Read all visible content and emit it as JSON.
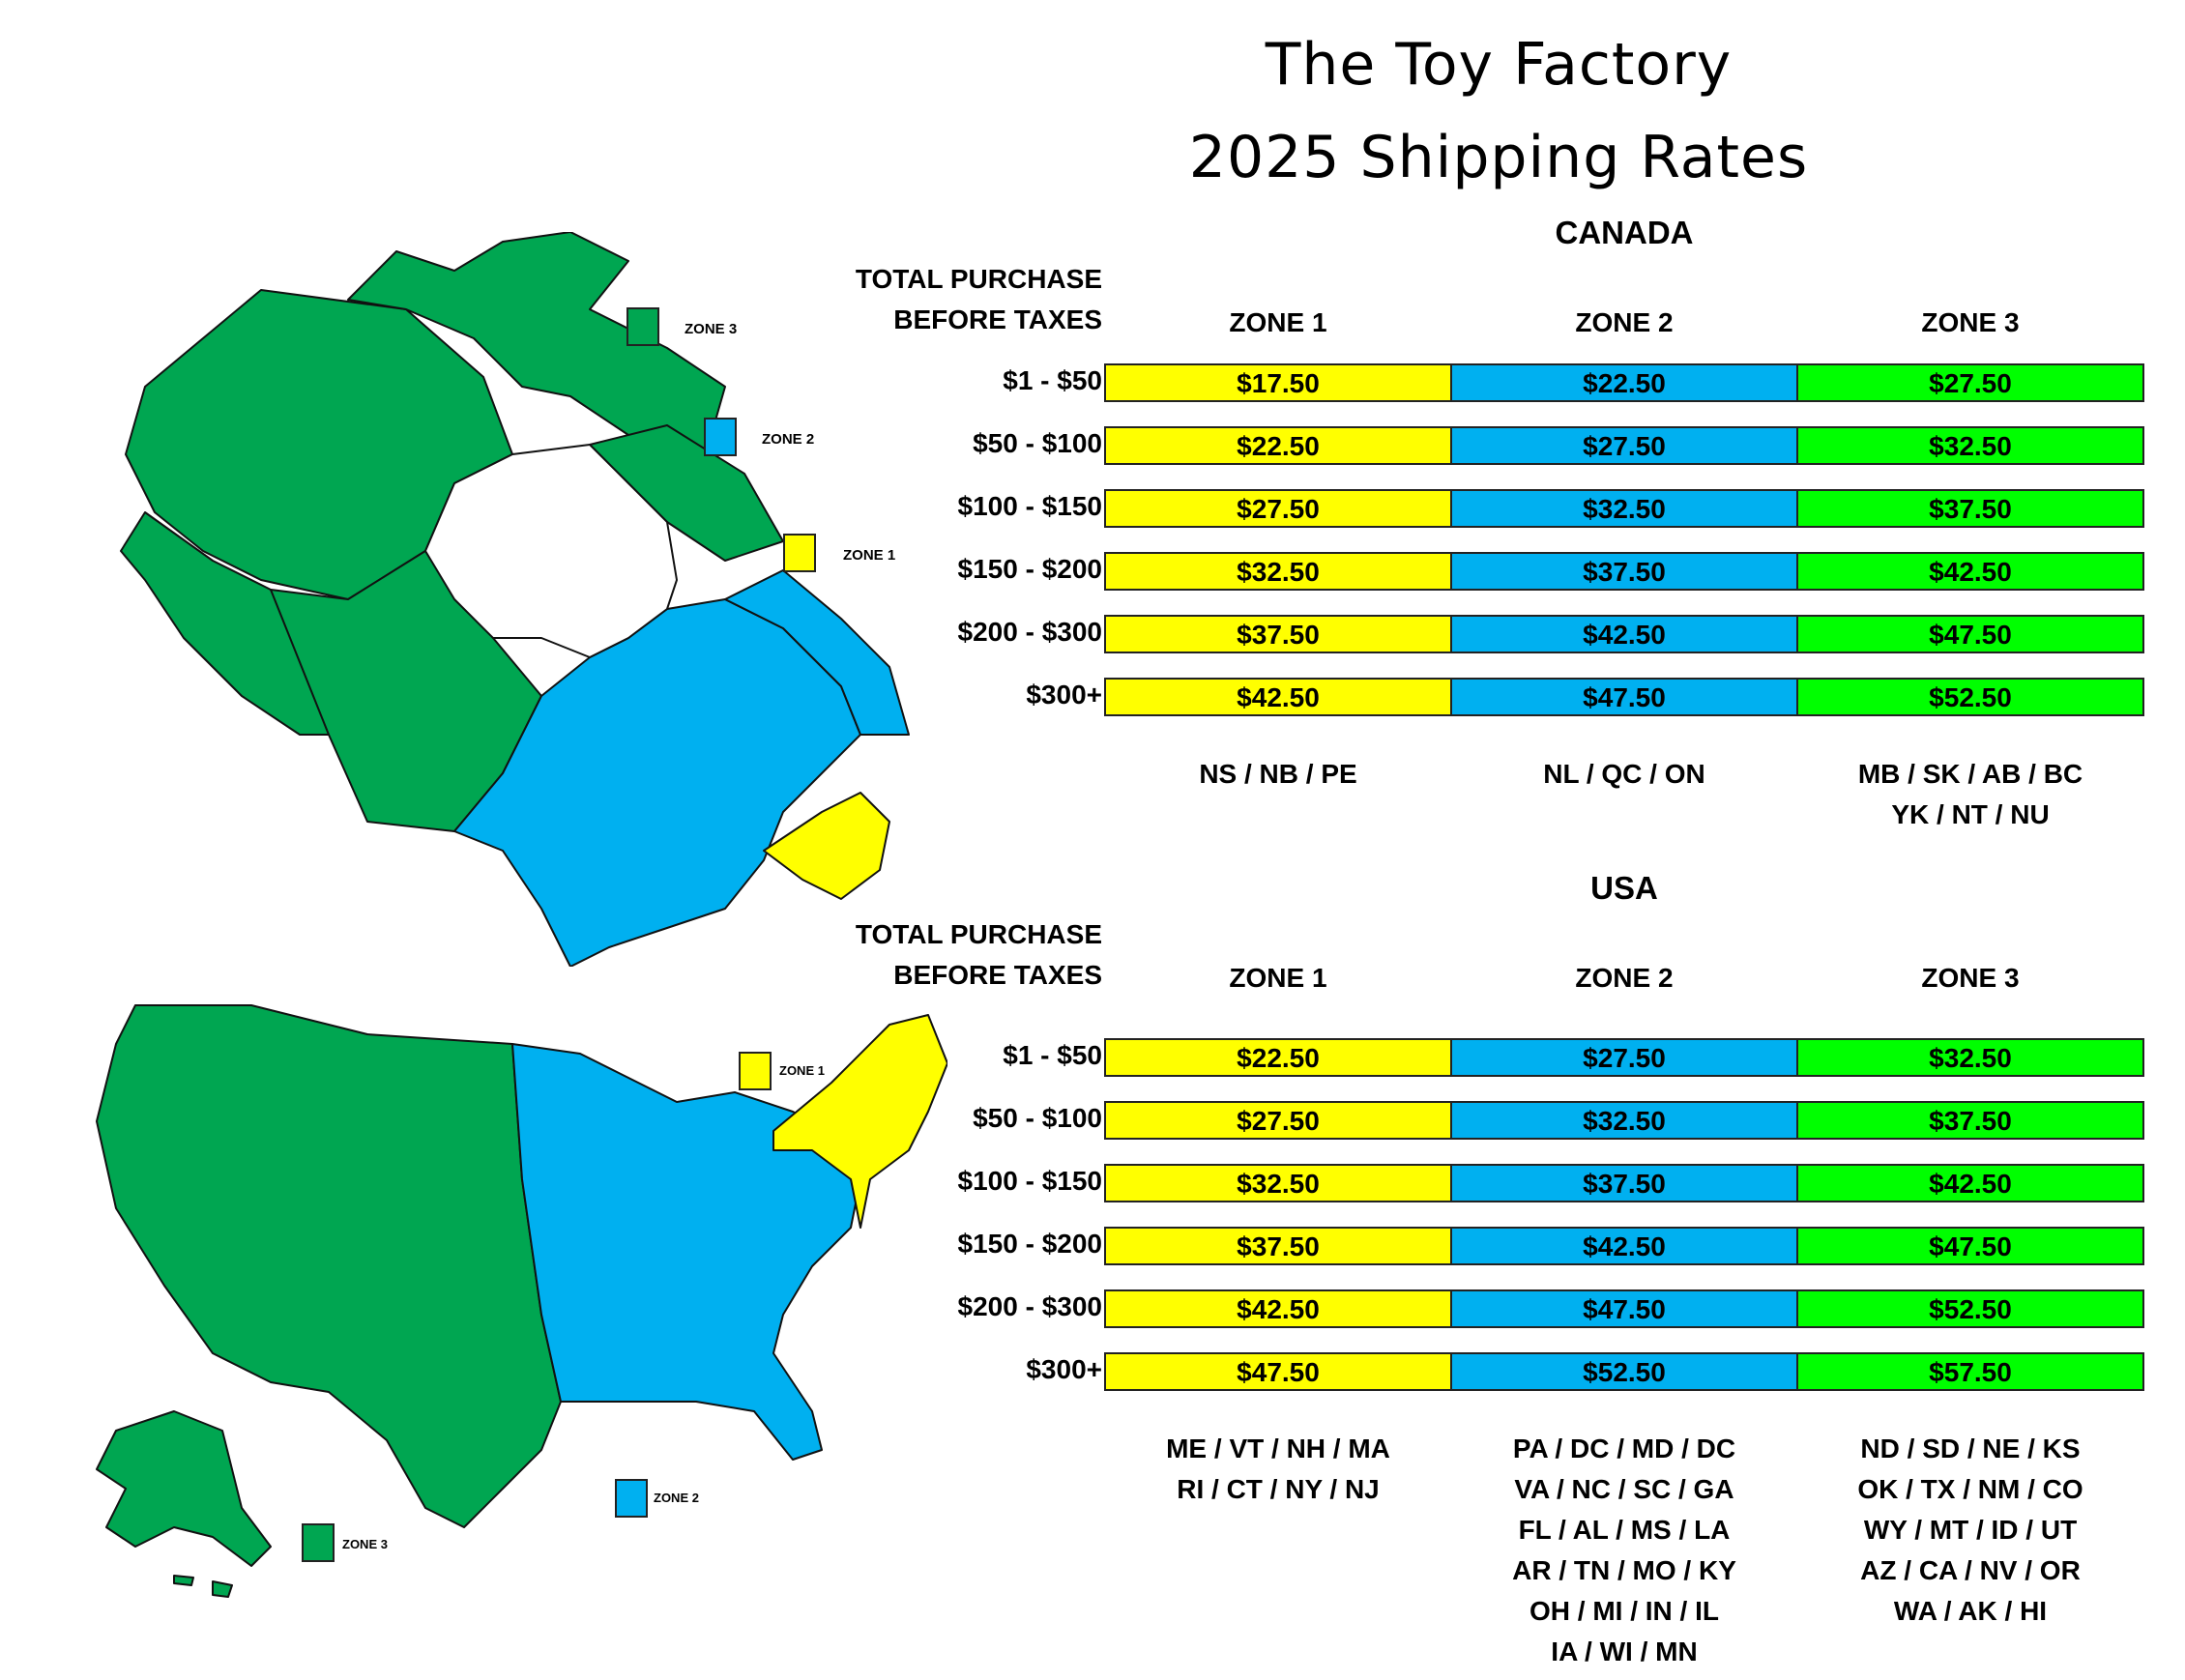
{
  "title_line1": "The Toy Factory",
  "title_line2": "2025 Shipping Rates",
  "colors": {
    "zone1": "#ffff00",
    "zone2": "#00b0f0",
    "zone3": "#00ff00",
    "map_zone3": "#00a651",
    "map_zone2": "#00b0f0",
    "map_zone1": "#ffff00"
  },
  "canada": {
    "heading": "CANADA",
    "purchase_label_1": "TOTAL PURCHASE",
    "purchase_label_2": "BEFORE TAXES",
    "zones": [
      "ZONE 1",
      "ZONE 2",
      "ZONE 3"
    ],
    "rows": [
      {
        "range": "$1 - $50",
        "rates": [
          "$17.50",
          "$22.50",
          "$27.50"
        ]
      },
      {
        "range": "$50 - $100",
        "rates": [
          "$22.50",
          "$27.50",
          "$32.50"
        ]
      },
      {
        "range": "$100 - $150",
        "rates": [
          "$27.50",
          "$32.50",
          "$37.50"
        ]
      },
      {
        "range": "$150 - $200",
        "rates": [
          "$32.50",
          "$37.50",
          "$42.50"
        ]
      },
      {
        "range": "$200 - $300",
        "rates": [
          "$37.50",
          "$42.50",
          "$47.50"
        ]
      },
      {
        "range": "$300+",
        "rates": [
          "$42.50",
          "$47.50",
          "$52.50"
        ]
      }
    ],
    "zone1_regions": [
      "NS / NB / PE"
    ],
    "zone2_regions": [
      "NL / QC / ON"
    ],
    "zone3_regions": [
      "MB / SK / AB / BC",
      "YK / NT / NU"
    ],
    "legend": {
      "zone3": "ZONE 3",
      "zone2": "ZONE 2",
      "zone1": "ZONE 1"
    }
  },
  "usa": {
    "heading": "USA",
    "purchase_label_1": "TOTAL PURCHASE",
    "purchase_label_2": "BEFORE TAXES",
    "zones": [
      "ZONE 1",
      "ZONE 2",
      "ZONE 3"
    ],
    "rows": [
      {
        "range": "$1 - $50",
        "rates": [
          "$22.50",
          "$27.50",
          "$32.50"
        ]
      },
      {
        "range": "$50 - $100",
        "rates": [
          "$27.50",
          "$32.50",
          "$37.50"
        ]
      },
      {
        "range": "$100 - $150",
        "rates": [
          "$32.50",
          "$37.50",
          "$42.50"
        ]
      },
      {
        "range": "$150 - $200",
        "rates": [
          "$37.50",
          "$42.50",
          "$47.50"
        ]
      },
      {
        "range": "$200 - $300",
        "rates": [
          "$42.50",
          "$47.50",
          "$52.50"
        ]
      },
      {
        "range": "$300+",
        "rates": [
          "$47.50",
          "$52.50",
          "$57.50"
        ]
      }
    ],
    "zone1_regions": [
      "ME / VT / NH / MA",
      "RI / CT / NY / NJ"
    ],
    "zone2_regions": [
      "PA / DC / MD / DC",
      "VA / NC / SC / GA",
      "FL / AL / MS / LA",
      "AR / TN / MO / KY",
      "OH / MI / IN / IL",
      "IA / WI / MN"
    ],
    "zone3_regions": [
      "ND / SD / NE / KS",
      "OK / TX / NM / CO",
      "WY / MT / ID / UT",
      "AZ / CA / NV / OR",
      "WA / AK / HI"
    ],
    "legend": {
      "zone1": "ZONE 1",
      "zone2": "ZONE 2",
      "zone3": "ZONE 3"
    }
  }
}
